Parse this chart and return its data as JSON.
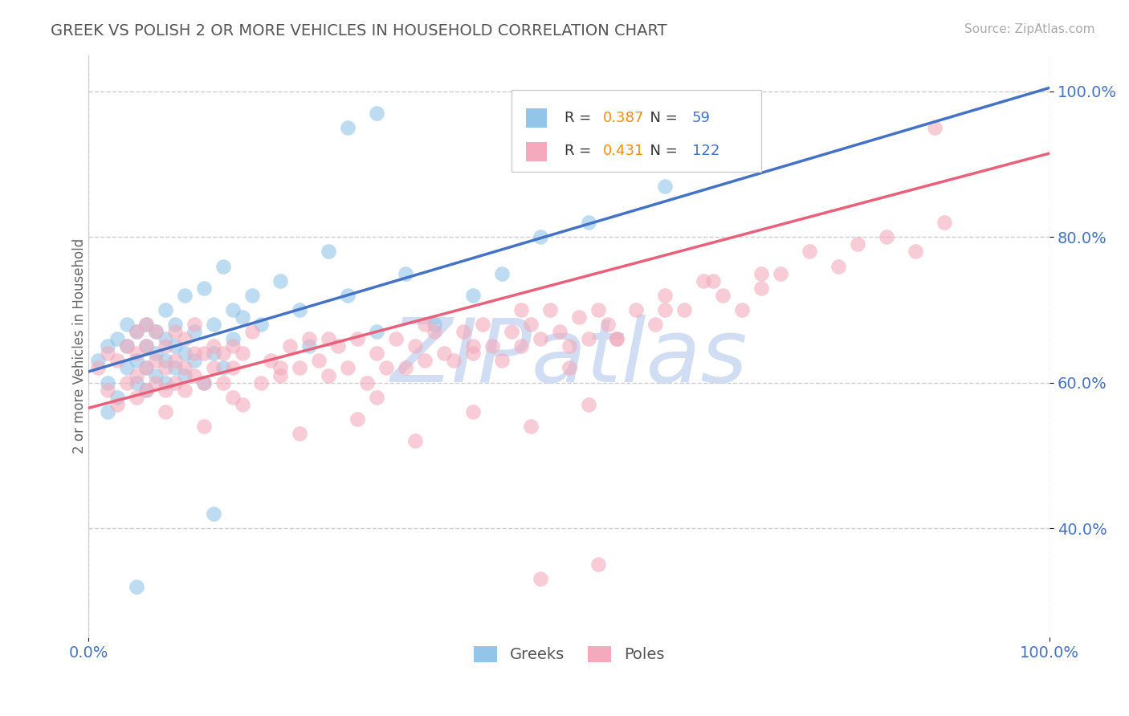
{
  "title": "GREEK VS POLISH 2 OR MORE VEHICLES IN HOUSEHOLD CORRELATION CHART",
  "source_text": "Source: ZipAtlas.com",
  "ylabel": "2 or more Vehicles in Household",
  "R_greek": 0.387,
  "N_greek": 59,
  "R_polish": 0.431,
  "N_polish": 122,
  "xlim": [
    0.0,
    1.0
  ],
  "ylim": [
    0.25,
    1.05
  ],
  "x_tick_vals": [
    0.0,
    1.0
  ],
  "x_tick_labels": [
    "0.0%",
    "100.0%"
  ],
  "y_tick_vals": [
    0.4,
    0.6,
    0.8,
    1.0
  ],
  "y_tick_labels": [
    "40.0%",
    "60.0%",
    "80.0%",
    "100.0%"
  ],
  "greek_color": "#92C5E8",
  "polish_color": "#F4AABC",
  "greek_line_color": "#4472C4",
  "polish_line_color": "#E8607A",
  "watermark_color": "#C8D8F0",
  "background_color": "#FFFFFF",
  "tick_color": "#4472C4",
  "title_color": "#555555",
  "legend_R_color": "#FF8C00",
  "legend_N_color": "#4472C4",
  "greek_line_x0": 0.0,
  "greek_line_y0": 0.615,
  "greek_line_x1": 1.0,
  "greek_line_y1": 1.005,
  "polish_line_x0": 0.0,
  "polish_line_y0": 0.565,
  "polish_line_x1": 1.0,
  "polish_line_y1": 0.915
}
